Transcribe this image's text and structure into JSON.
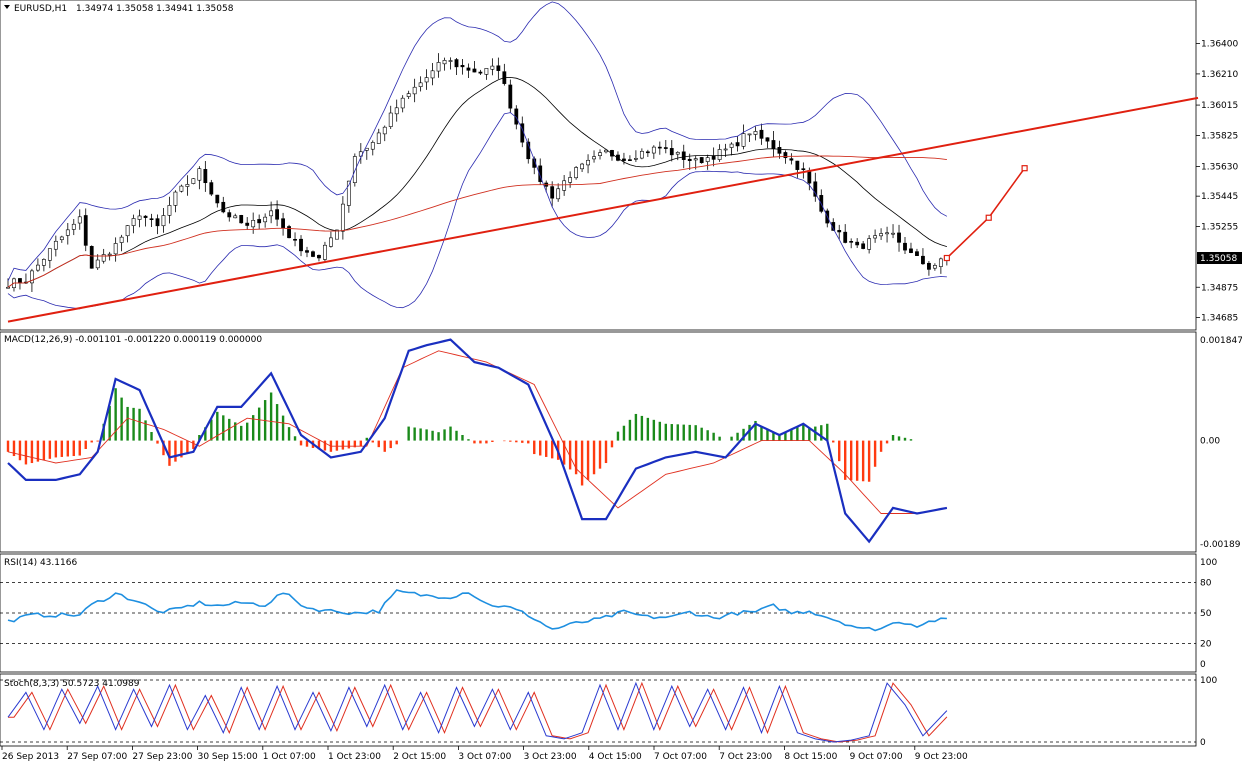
{
  "chart_data": {
    "type": "candlestick",
    "symbol": "EURUSD,H1",
    "ohlc_header": "1.34974 1.35058 1.34941 1.35058",
    "price_axis": {
      "ylim": [
        1.3462,
        1.3666
      ],
      "ticks": [
        "1.36400",
        "1.36210",
        "1.36015",
        "1.35825",
        "1.35630",
        "1.35445",
        "1.35255",
        "1.34875",
        "1.34685"
      ],
      "last_price": "1.35058"
    },
    "time_axis": {
      "labels": [
        "26 Sep 2013",
        "27 Sep 07:00",
        "27 Sep 23:00",
        "30 Sep 15:00",
        "1 Oct 07:00",
        "1 Oct 23:00",
        "2 Oct 15:00",
        "3 Oct 07:00",
        "3 Oct 23:00",
        "4 Oct 15:00",
        "7 Oct 07:00",
        "7 Oct 23:00",
        "8 Oct 15:00",
        "9 Oct 07:00",
        "9 Oct 23:00"
      ]
    },
    "close_path": [
      [
        0,
        1.349
      ],
      [
        3,
        1.3492
      ],
      [
        8,
        1.3515
      ],
      [
        12,
        1.353
      ],
      [
        14,
        1.35
      ],
      [
        18,
        1.3514
      ],
      [
        22,
        1.3534
      ],
      [
        25,
        1.3525
      ],
      [
        28,
        1.3545
      ],
      [
        32,
        1.356
      ],
      [
        36,
        1.3535
      ],
      [
        40,
        1.3525
      ],
      [
        44,
        1.3535
      ],
      [
        48,
        1.3515
      ],
      [
        52,
        1.3505
      ],
      [
        55,
        1.3525
      ],
      [
        58,
        1.357
      ],
      [
        61,
        1.3578
      ],
      [
        65,
        1.36
      ],
      [
        68,
        1.3612
      ],
      [
        71,
        1.3622
      ],
      [
        73,
        1.363
      ],
      [
        76,
        1.3625
      ],
      [
        79,
        1.3622
      ],
      [
        82,
        1.3625
      ],
      [
        85,
        1.359
      ],
      [
        88,
        1.356
      ],
      [
        91,
        1.3545
      ],
      [
        94,
        1.3558
      ],
      [
        97,
        1.3565
      ],
      [
        100,
        1.3572
      ],
      [
        103,
        1.3568
      ],
      [
        106,
        1.3572
      ],
      [
        109,
        1.3575
      ],
      [
        112,
        1.357
      ],
      [
        115,
        1.3566
      ],
      [
        118,
        1.357
      ],
      [
        121,
        1.3575
      ],
      [
        124,
        1.3585
      ],
      [
        127,
        1.3578
      ],
      [
        130,
        1.357
      ],
      [
        133,
        1.356
      ],
      [
        136,
        1.3535
      ],
      [
        139,
        1.352
      ],
      [
        142,
        1.3512
      ],
      [
        145,
        1.3518
      ],
      [
        148,
        1.352
      ],
      [
        151,
        1.3508
      ],
      [
        154,
        1.35
      ],
      [
        157,
        1.3505
      ]
    ],
    "candles_total": 158,
    "trendline": {
      "from": [
        0,
        1.3466
      ],
      "to": [
        199,
        1.3606
      ]
    },
    "projection": [
      [
        157,
        1.35058
      ],
      [
        164,
        1.3531
      ],
      [
        170,
        1.3562
      ]
    ],
    "macd": {
      "label": "MACD(12,26,9) -0.001101 -0.001220 0.000119 0.000000",
      "ylim": [
        -0.00195,
        0.0019
      ],
      "ticks": [
        "0.001847",
        "0.00",
        "-0.00189"
      ],
      "macd_line": [
        [
          0,
          -0.0004
        ],
        [
          3,
          -0.0007
        ],
        [
          8,
          -0.0007
        ],
        [
          12,
          -0.0006
        ],
        [
          15,
          -0.0002
        ],
        [
          18,
          0.0011
        ],
        [
          22,
          0.0009
        ],
        [
          27,
          -0.0003
        ],
        [
          31,
          -0.0002
        ],
        [
          35,
          0.0006
        ],
        [
          39,
          0.0006
        ],
        [
          44,
          0.0012
        ],
        [
          49,
          0.0001
        ],
        [
          54,
          -0.0003
        ],
        [
          59,
          -0.0002
        ],
        [
          63,
          0.0004
        ],
        [
          67,
          0.0016
        ],
        [
          70,
          0.0017
        ],
        [
          74,
          0.0018
        ],
        [
          78,
          0.0014
        ],
        [
          82,
          0.0013
        ],
        [
          87,
          0.001
        ],
        [
          92,
          -0.0002
        ],
        [
          96,
          -0.0014
        ],
        [
          100,
          -0.0014
        ],
        [
          105,
          -0.0005
        ],
        [
          110,
          -0.0003
        ],
        [
          115,
          -0.0002
        ],
        [
          120,
          -0.0003
        ],
        [
          125,
          0.0003
        ],
        [
          129,
          0.0001
        ],
        [
          133,
          0.0003
        ],
        [
          137,
          0.0
        ],
        [
          140,
          -0.0013
        ],
        [
          144,
          -0.0018
        ],
        [
          148,
          -0.0012
        ],
        [
          152,
          -0.0013
        ],
        [
          157,
          -0.0012
        ]
      ],
      "signal_line": [
        [
          0,
          -0.0002
        ],
        [
          8,
          -0.0004
        ],
        [
          14,
          -0.0003
        ],
        [
          20,
          0.0004
        ],
        [
          26,
          0.0002
        ],
        [
          32,
          -0.0001
        ],
        [
          40,
          0.0004
        ],
        [
          47,
          0.0003
        ],
        [
          54,
          -0.0001
        ],
        [
          60,
          -0.0001
        ],
        [
          66,
          0.0013
        ],
        [
          72,
          0.0016
        ],
        [
          80,
          0.0014
        ],
        [
          88,
          0.001
        ],
        [
          95,
          -0.0005
        ],
        [
          102,
          -0.0012
        ],
        [
          110,
          -0.0006
        ],
        [
          118,
          -0.0004
        ],
        [
          126,
          0.0
        ],
        [
          134,
          0.0
        ],
        [
          140,
          -0.0006
        ],
        [
          146,
          -0.0013
        ],
        [
          152,
          -0.0013
        ],
        [
          157,
          -0.0012
        ]
      ]
    },
    "rsi": {
      "label": "RSI(14) 43.1166",
      "ylim": [
        0,
        100
      ],
      "levels": [
        20,
        50,
        80
      ],
      "ticks": [
        "100",
        "80",
        "50",
        "20",
        "0"
      ],
      "values": [
        [
          0,
          42
        ],
        [
          4,
          48
        ],
        [
          8,
          48
        ],
        [
          12,
          48
        ],
        [
          14,
          58
        ],
        [
          18,
          69
        ],
        [
          22,
          61
        ],
        [
          25,
          51
        ],
        [
          28,
          53
        ],
        [
          32,
          60
        ],
        [
          35,
          57
        ],
        [
          39,
          60
        ],
        [
          43,
          58
        ],
        [
          46,
          70
        ],
        [
          50,
          55
        ],
        [
          54,
          52
        ],
        [
          58,
          50
        ],
        [
          62,
          52
        ],
        [
          65,
          71
        ],
        [
          70,
          67
        ],
        [
          74,
          66
        ],
        [
          77,
          71
        ],
        [
          80,
          59
        ],
        [
          84,
          55
        ],
        [
          87,
          48
        ],
        [
          91,
          34
        ],
        [
          95,
          40
        ],
        [
          99,
          44
        ],
        [
          103,
          51
        ],
        [
          107,
          46
        ],
        [
          111,
          46
        ],
        [
          114,
          51
        ],
        [
          118,
          45
        ],
        [
          122,
          50
        ],
        [
          125,
          51
        ],
        [
          128,
          57
        ],
        [
          131,
          50
        ],
        [
          134,
          52
        ],
        [
          137,
          46
        ],
        [
          140,
          40
        ],
        [
          143,
          34
        ],
        [
          146,
          35
        ],
        [
          149,
          42
        ],
        [
          152,
          38
        ],
        [
          155,
          43
        ],
        [
          157,
          43.1
        ]
      ]
    },
    "stoch": {
      "label": "Stoch(8,3,3) 50.5723 41.0989",
      "ylim": [
        0,
        100
      ],
      "ticks": [
        "100",
        "0"
      ],
      "main": [
        [
          0,
          40
        ],
        [
          3,
          80
        ],
        [
          6,
          20
        ],
        [
          9,
          85
        ],
        [
          12,
          30
        ],
        [
          15,
          90
        ],
        [
          18,
          20
        ],
        [
          21,
          85
        ],
        [
          24,
          25
        ],
        [
          27,
          92
        ],
        [
          30,
          20
        ],
        [
          33,
          75
        ],
        [
          36,
          15
        ],
        [
          39,
          88
        ],
        [
          42,
          20
        ],
        [
          45,
          90
        ],
        [
          48,
          20
        ],
        [
          51,
          80
        ],
        [
          54,
          18
        ],
        [
          57,
          88
        ],
        [
          60,
          25
        ],
        [
          63,
          92
        ],
        [
          66,
          20
        ],
        [
          69,
          80
        ],
        [
          72,
          15
        ],
        [
          75,
          88
        ],
        [
          78,
          25
        ],
        [
          81,
          85
        ],
        [
          84,
          20
        ],
        [
          87,
          80
        ],
        [
          90,
          10
        ],
        [
          93,
          5
        ],
        [
          96,
          15
        ],
        [
          99,
          92
        ],
        [
          102,
          20
        ],
        [
          105,
          95
        ],
        [
          108,
          20
        ],
        [
          111,
          90
        ],
        [
          114,
          25
        ],
        [
          117,
          85
        ],
        [
          120,
          20
        ],
        [
          123,
          88
        ],
        [
          126,
          15
        ],
        [
          129,
          90
        ],
        [
          132,
          15
        ],
        [
          135,
          5
        ],
        [
          138,
          0
        ],
        [
          141,
          3
        ],
        [
          144,
          10
        ],
        [
          147,
          95
        ],
        [
          150,
          60
        ],
        [
          153,
          10
        ],
        [
          157,
          50.6
        ]
      ],
      "signal_offset_candles": 1
    }
  }
}
